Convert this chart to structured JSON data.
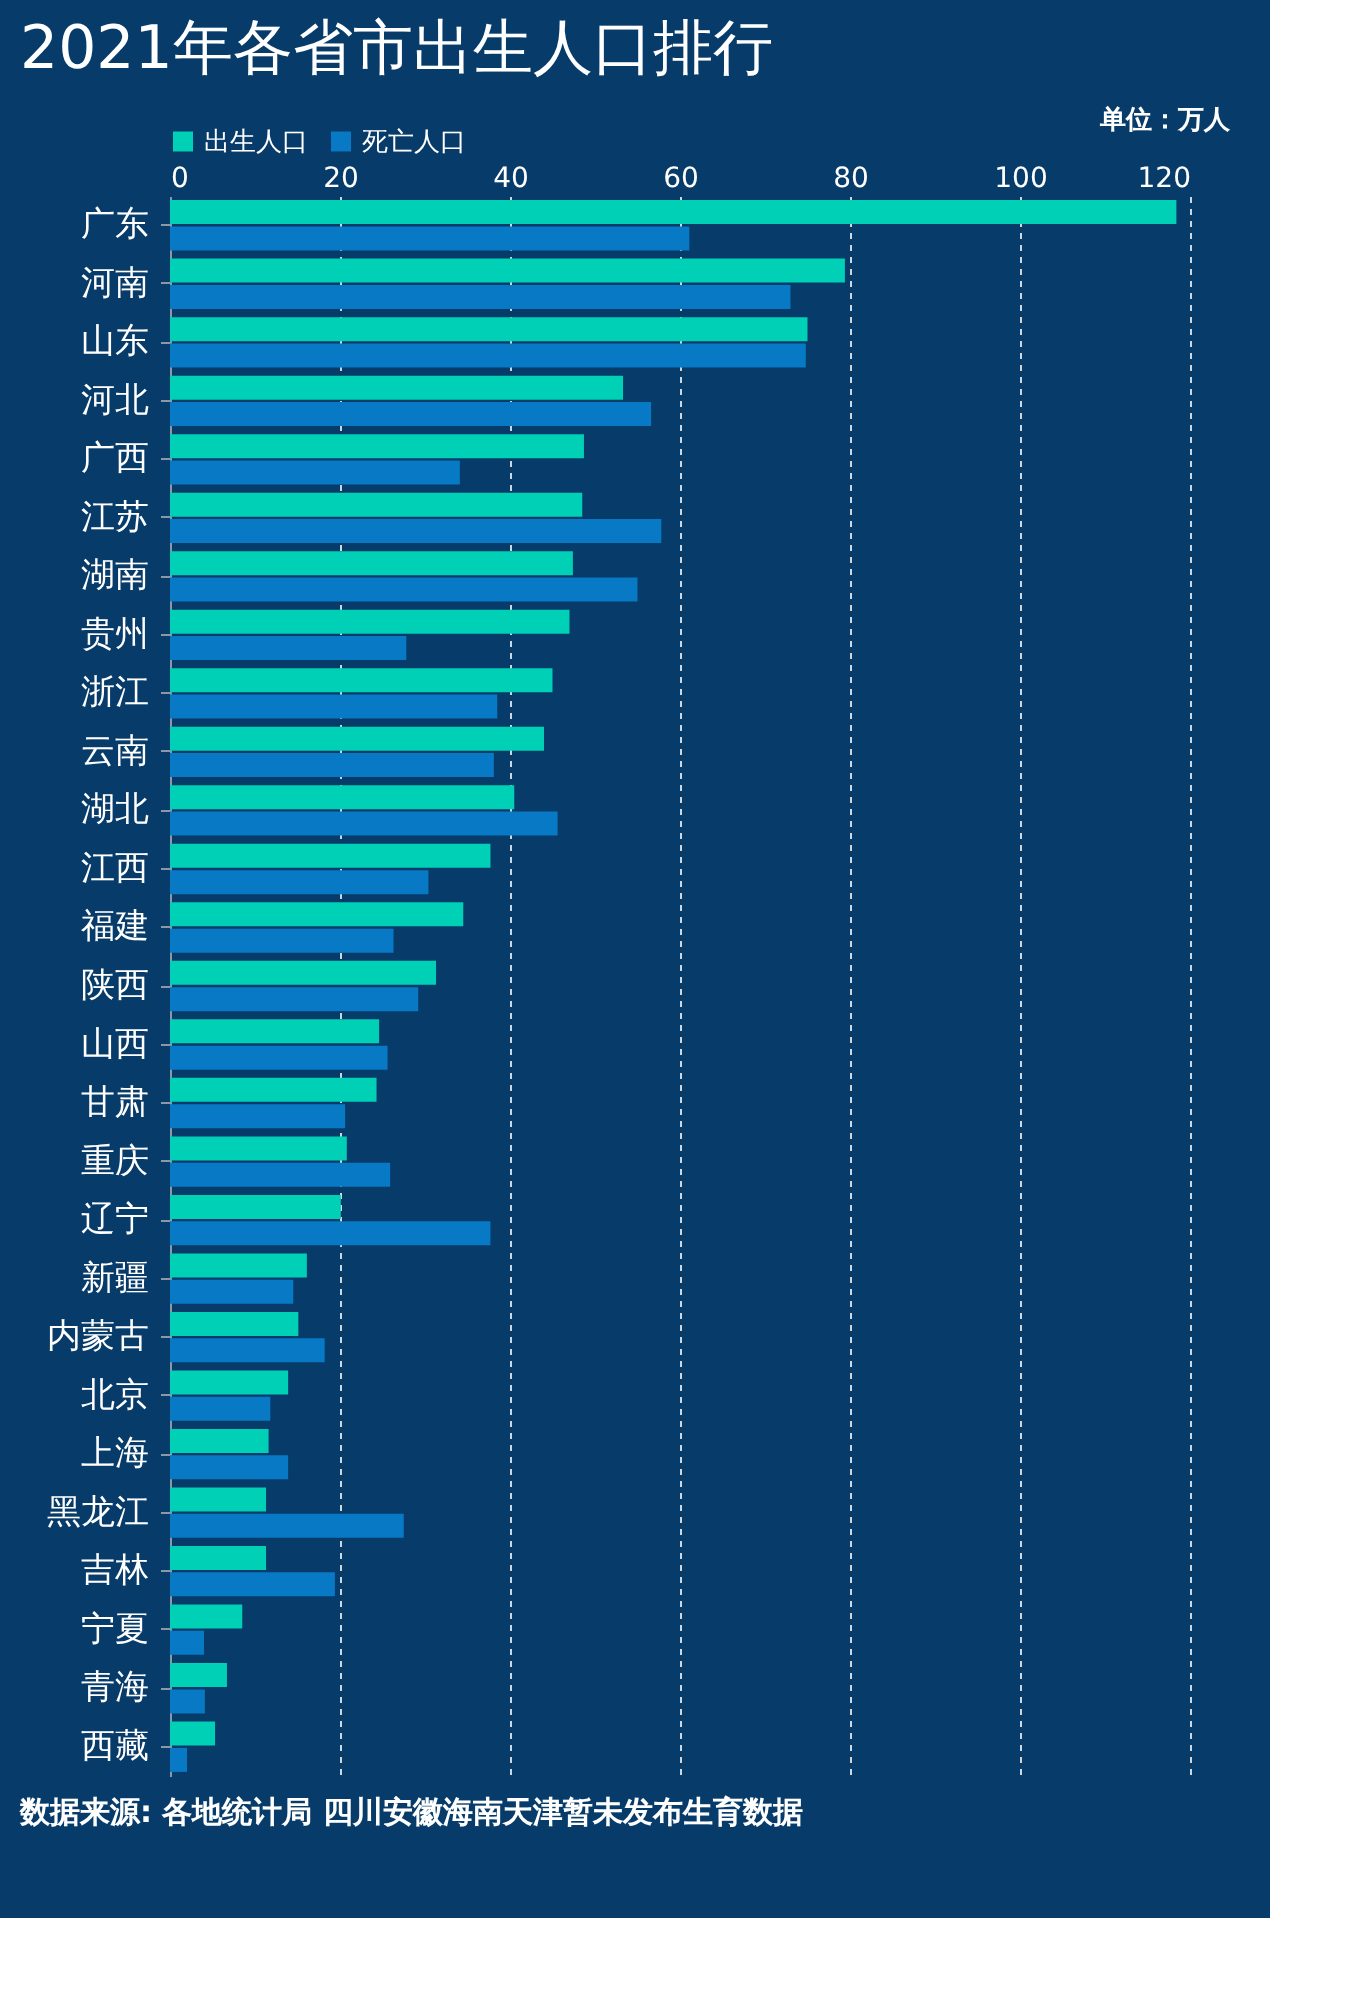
{
  "chart_data": {
    "type": "bar",
    "orientation": "horizontal",
    "title": "2021年各省市出生人口排行",
    "categories": [
      "广东",
      "河南",
      "山东",
      "河北",
      "广西",
      "江苏",
      "湖南",
      "贵州",
      "浙江",
      "云南",
      "湖北",
      "江西",
      "福建",
      "陕西",
      "山西",
      "甘肃",
      "重庆",
      "辽宁",
      "新疆",
      "内蒙古",
      "北京",
      "上海",
      "黑龙江",
      "吉林",
      "宁夏",
      "青海",
      "西藏"
    ],
    "series": [
      {
        "name": "出生人口",
        "color": "#00d0b5",
        "values": [
          118.4,
          79.4,
          75.0,
          53.3,
          48.7,
          48.5,
          47.4,
          47.0,
          45.0,
          44.0,
          40.5,
          37.7,
          34.5,
          31.3,
          24.6,
          24.3,
          20.8,
          20.1,
          16.1,
          15.1,
          13.9,
          11.6,
          11.3,
          11.3,
          8.5,
          6.7,
          5.3
        ]
      },
      {
        "name": "死亡人口",
        "color": "#0779c5",
        "values": [
          61.1,
          73.0,
          74.8,
          56.6,
          34.1,
          57.8,
          55.0,
          27.8,
          38.5,
          38.1,
          45.6,
          30.4,
          26.3,
          29.2,
          25.6,
          20.6,
          25.9,
          37.7,
          14.5,
          18.2,
          11.8,
          13.9,
          27.5,
          19.4,
          4.0,
          4.1,
          2.0
        ]
      }
    ],
    "xlim": [
      0,
      120
    ],
    "xticks": [
      0,
      20,
      40,
      60,
      80,
      100,
      120
    ],
    "grid": "x",
    "legend": "top left",
    "annotations": [
      "单位：万人",
      "数据来源: 各地统计局 四川安徽海南天津暂未发布生育数据"
    ]
  }
}
